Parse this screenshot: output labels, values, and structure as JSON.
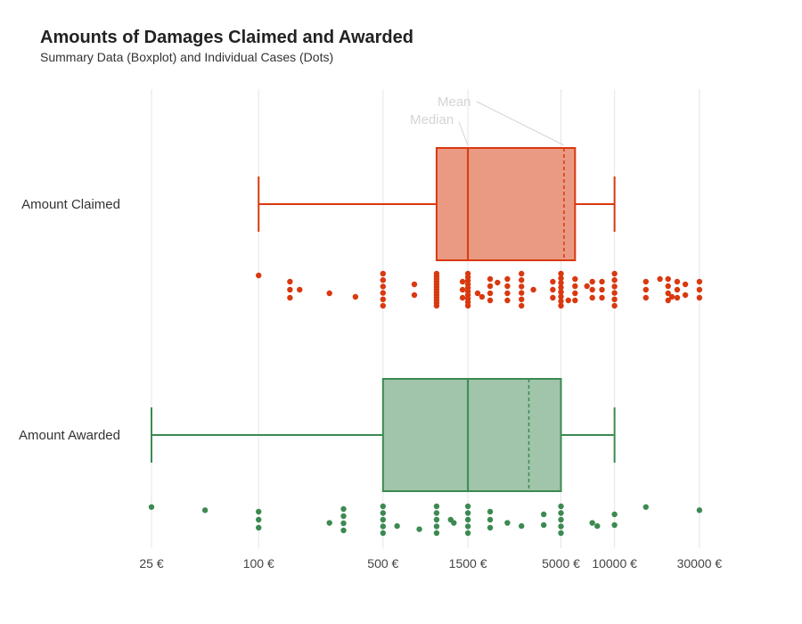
{
  "chart_data": {
    "type": "boxplot",
    "title": "Amounts of Damages Claimed and Awarded",
    "subtitle": "Summary Data (Boxplot) and Individual Cases (Dots)",
    "x_scale": "log",
    "xlim": [
      25,
      30000
    ],
    "grid": "vertical",
    "x_ticks": [
      25,
      100,
      500,
      1500,
      5000,
      10000,
      30000
    ],
    "x_tick_labels": [
      "25 €",
      "100 €",
      "500 €",
      "1500 €",
      "5000 €",
      "10000 €",
      "30000 €"
    ],
    "annotations": {
      "mean": "Mean",
      "median": "Median"
    },
    "series": [
      {
        "name": "Amount Claimed",
        "color": "#d9390f",
        "fill": "#ea9a82",
        "min": 100,
        "q1": 1000,
        "median": 1500,
        "mean": 5200,
        "q3": 6000,
        "max": 10000,
        "points": [
          100,
          150,
          150,
          150,
          170,
          250,
          350,
          500,
          500,
          500,
          500,
          500,
          500,
          750,
          750,
          1000,
          1000,
          1000,
          1000,
          1000,
          1000,
          1000,
          1000,
          1000,
          1000,
          1000,
          1000,
          1000,
          1400,
          1400,
          1400,
          1500,
          1500,
          1500,
          1500,
          1500,
          1500,
          1500,
          1500,
          1500,
          1500,
          1700,
          1800,
          2000,
          2000,
          2000,
          2000,
          2200,
          2500,
          2500,
          2500,
          2500,
          3000,
          3000,
          3000,
          3000,
          3000,
          3000,
          3500,
          4500,
          4500,
          4500,
          5000,
          5000,
          5000,
          5000,
          5000,
          5000,
          5000,
          5000,
          5500,
          6000,
          6000,
          6000,
          6000,
          7000,
          7500,
          7500,
          7500,
          8500,
          8500,
          8500,
          10000,
          10000,
          10000,
          10000,
          10000,
          10000,
          15000,
          15000,
          15000,
          18000,
          20000,
          20000,
          20000,
          20000,
          21000,
          22500,
          22500,
          22500,
          25000,
          25000,
          30000,
          30000,
          30000
        ]
      },
      {
        "name": "Amount Awarded",
        "color": "#3c8a52",
        "fill": "#a0c5aa",
        "min": 25,
        "q1": 500,
        "median": 1500,
        "mean": 3300,
        "q3": 5000,
        "max": 10000,
        "points": [
          25,
          50,
          100,
          100,
          100,
          250,
          300,
          300,
          300,
          300,
          500,
          500,
          500,
          500,
          500,
          600,
          800,
          1000,
          1000,
          1000,
          1000,
          1000,
          1200,
          1250,
          1500,
          1500,
          1500,
          1500,
          1500,
          2000,
          2000,
          2000,
          2500,
          3000,
          4000,
          4000,
          5000,
          5000,
          5000,
          5000,
          5000,
          7500,
          8000,
          10000,
          10000,
          15000,
          30000
        ]
      }
    ]
  }
}
